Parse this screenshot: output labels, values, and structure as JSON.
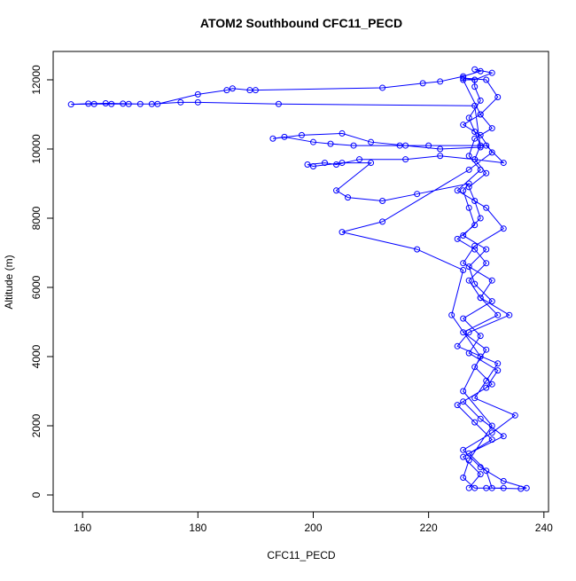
{
  "chart_data": {
    "type": "line",
    "title": "ATOM2 Southbound CFC11_PECD",
    "xlabel": "CFC11_PECD",
    "ylabel": "Altitude (m)",
    "color": "#0000ff",
    "xlim": [
      154.9,
      240.8
    ],
    "ylim": [
      -487,
      12820
    ],
    "xticks": [
      160,
      180,
      200,
      220,
      240
    ],
    "yticks": [
      0,
      2000,
      4000,
      6000,
      8000,
      10000,
      12000
    ],
    "x": [
      227,
      229,
      226,
      231,
      228,
      225,
      230,
      232,
      227,
      229,
      226,
      231,
      228,
      227,
      230,
      226,
      229,
      228,
      227,
      230,
      228,
      229,
      228,
      227,
      229,
      228,
      228,
      226,
      230,
      232,
      229,
      231,
      228,
      227,
      229,
      225,
      230,
      233,
      228,
      226,
      231,
      229,
      234,
      227,
      225,
      232,
      230,
      228,
      235,
      231,
      226,
      229,
      233,
      237,
      236,
      231,
      230,
      227,
      233,
      229,
      226,
      231,
      228,
      230,
      226,
      232,
      229,
      227,
      230,
      228,
      225,
      228,
      227,
      226,
      227,
      218,
      212,
      206,
      204,
      210,
      205,
      200,
      199,
      202,
      204,
      208,
      216,
      222,
      228,
      233,
      230,
      220,
      215,
      207,
      203,
      200,
      195,
      193,
      198,
      205,
      210,
      216,
      222,
      229,
      228,
      194,
      180,
      177,
      172,
      168,
      165,
      162,
      158,
      161,
      164,
      167,
      170,
      173,
      180,
      185,
      186,
      189,
      190,
      212,
      219,
      222,
      226,
      229,
      228,
      231,
      228,
      226,
      229,
      226,
      229,
      231,
      227,
      212,
      205,
      218,
      226,
      224,
      229,
      226,
      231,
      227,
      226,
      228,
      230,
      233
    ],
    "values": [
      200,
      600,
      1100,
      1600,
      2100,
      2600,
      3100,
      3600,
      4100,
      4600,
      5100,
      5600,
      6100,
      6600,
      7100,
      7500,
      8000,
      8500,
      8900,
      9300,
      9700,
      10100,
      10500,
      10900,
      11400,
      11800,
      12000,
      12050,
      12000,
      11500,
      11000,
      10600,
      10300,
      9800,
      9400,
      8800,
      8300,
      7700,
      7200,
      6700,
      6200,
      5700,
      5200,
      4700,
      4300,
      3800,
      3300,
      2800,
      2300,
      1800,
      1300,
      800,
      400,
      200,
      180,
      200,
      700,
      1200,
      1700,
      2200,
      2700,
      3200,
      3700,
      4200,
      4700,
      5200,
      5700,
      6200,
      6700,
      7100,
      7400,
      7800,
      8300,
      8800,
      9000,
      8700,
      8500,
      8600,
      8800,
      9600,
      9600,
      9500,
      9550,
      9600,
      9550,
      9700,
      9700,
      9800,
      9700,
      9600,
      10100,
      10100,
      10100,
      10100,
      10150,
      10200,
      10350,
      10300,
      10400,
      10450,
      10200,
      10100,
      10000,
      10050,
      11250,
      11300,
      11350,
      11350,
      11300,
      11300,
      11300,
      11300,
      11290,
      11310,
      11320,
      11310,
      11300,
      11300,
      11580,
      11700,
      11750,
      11700,
      11700,
      11770,
      11900,
      11950,
      12100,
      12250,
      12300,
      12200,
      12000,
      12000,
      11000,
      10700,
      10400,
      9900,
      9400,
      7900,
      7600,
      7100,
      6500,
      5200,
      4000,
      3000,
      2000,
      1000,
      500,
      200,
      200,
      200
    ]
  }
}
